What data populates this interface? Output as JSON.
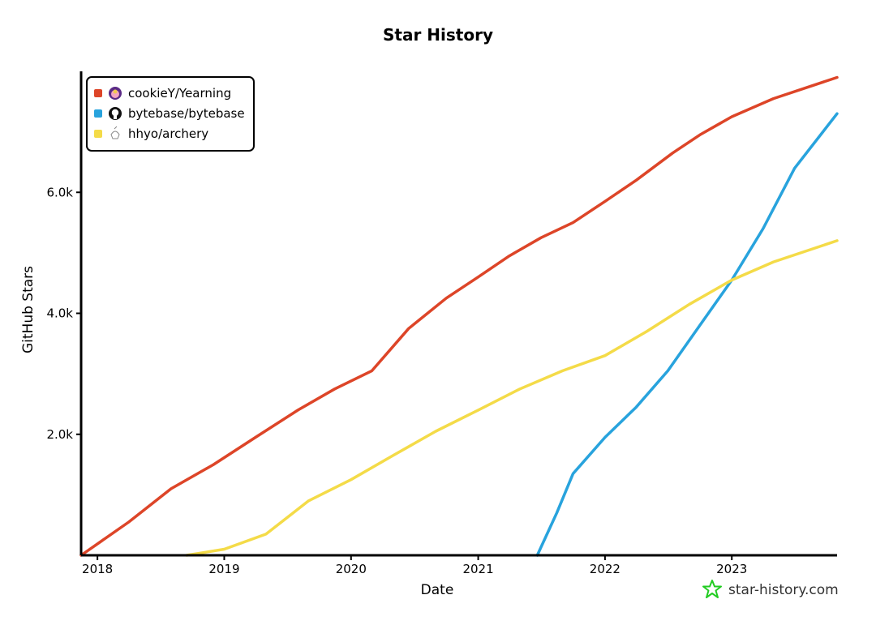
{
  "colors": {
    "accent_watermark": "#22cc22",
    "axis": "#000000"
  },
  "watermark": {
    "icon": "star-icon",
    "text": "star-history.com"
  },
  "chart_data": {
    "type": "line",
    "title": "Star History",
    "xlabel": "Date",
    "ylabel": "GitHub Stars",
    "x_ticks": [
      "2018",
      "2019",
      "2020",
      "2021",
      "2022",
      "2023"
    ],
    "y_ticks": [
      "2.0k",
      "4.0k",
      "6.0k"
    ],
    "xlim": [
      "2017-11-15",
      "2023-10-31"
    ],
    "ylim": [
      0,
      8000
    ],
    "grid": false,
    "legend_position": "top-left",
    "series": [
      {
        "name": "cookieY/Yearning",
        "color": "#dd4528",
        "icon": "avatar-icon",
        "points": [
          [
            "2017-11-15",
            0
          ],
          [
            "2018-04-01",
            550
          ],
          [
            "2018-08-01",
            1100
          ],
          [
            "2018-12-01",
            1500
          ],
          [
            "2019-04-01",
            1950
          ],
          [
            "2019-08-01",
            2400
          ],
          [
            "2019-11-15",
            2750
          ],
          [
            "2020-03-01",
            3050
          ],
          [
            "2020-06-15",
            3750
          ],
          [
            "2020-10-01",
            4250
          ],
          [
            "2021-01-01",
            4600
          ],
          [
            "2021-04-01",
            4950
          ],
          [
            "2021-07-01",
            5250
          ],
          [
            "2021-10-01",
            5500
          ],
          [
            "2022-01-01",
            5850
          ],
          [
            "2022-04-01",
            6200
          ],
          [
            "2022-07-15",
            6650
          ],
          [
            "2022-10-01",
            6950
          ],
          [
            "2023-01-01",
            7250
          ],
          [
            "2023-05-01",
            7550
          ],
          [
            "2023-10-31",
            7900
          ]
        ]
      },
      {
        "name": "bytebase/bytebase",
        "color": "#28a3dd",
        "icon": "github-icon",
        "points": [
          [
            "2021-06-20",
            0
          ],
          [
            "2021-08-15",
            700
          ],
          [
            "2021-10-01",
            1350
          ],
          [
            "2022-01-01",
            1950
          ],
          [
            "2022-04-01",
            2450
          ],
          [
            "2022-07-01",
            3050
          ],
          [
            "2022-10-01",
            3800
          ],
          [
            "2023-01-01",
            4550
          ],
          [
            "2023-04-01",
            5400
          ],
          [
            "2023-07-01",
            6400
          ],
          [
            "2023-10-31",
            7300
          ]
        ]
      },
      {
        "name": "hhyo/archery",
        "color": "#f4db48",
        "icon": "archery-logo-icon",
        "points": [
          [
            "2018-09-15",
            0
          ],
          [
            "2019-01-01",
            100
          ],
          [
            "2019-05-01",
            350
          ],
          [
            "2019-09-01",
            900
          ],
          [
            "2020-01-01",
            1250
          ],
          [
            "2020-05-01",
            1650
          ],
          [
            "2020-09-01",
            2050
          ],
          [
            "2021-01-01",
            2400
          ],
          [
            "2021-05-01",
            2750
          ],
          [
            "2021-09-01",
            3050
          ],
          [
            "2022-01-01",
            3300
          ],
          [
            "2022-05-01",
            3700
          ],
          [
            "2022-09-01",
            4150
          ],
          [
            "2023-01-01",
            4550
          ],
          [
            "2023-05-01",
            4850
          ],
          [
            "2023-10-31",
            5200
          ]
        ]
      }
    ]
  }
}
